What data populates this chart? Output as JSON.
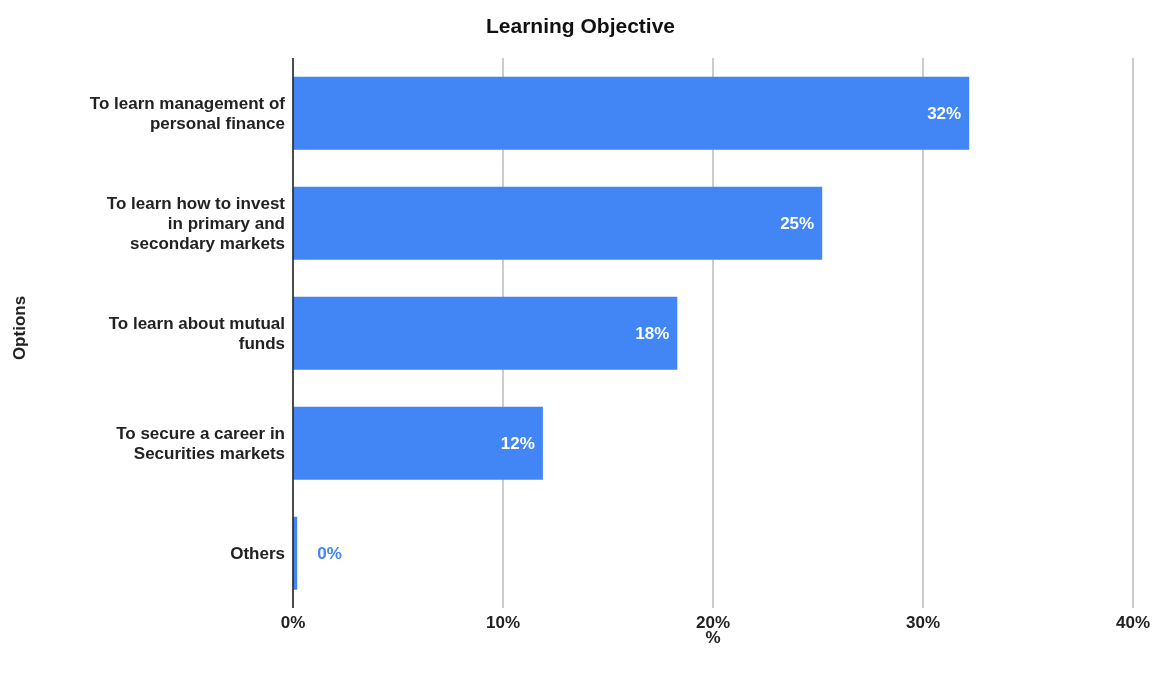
{
  "chart_data": {
    "type": "bar",
    "orientation": "horizontal",
    "title": "Learning Objective",
    "xlabel": "%",
    "ylabel": "Options",
    "categories": [
      "To learn management of personal finance",
      "To learn how to invest in primary and secondary markets",
      "To learn about mutual funds",
      "To secure a career in Securities markets",
      "Others"
    ],
    "values": [
      32.2,
      25.2,
      18.3,
      11.9,
      0.2
    ],
    "value_labels": [
      "32%",
      "25%",
      "18%",
      "12%",
      "0%"
    ],
    "color": "#4285f4",
    "xlim": [
      0,
      40
    ],
    "xticks": [
      {
        "value": 0,
        "label": "0%"
      },
      {
        "value": 10,
        "label": "10%"
      },
      {
        "value": 20,
        "label": "20%"
      },
      {
        "value": 30,
        "label": "30%"
      },
      {
        "value": 40,
        "label": "40%"
      }
    ],
    "grid": "x",
    "legend": false
  }
}
